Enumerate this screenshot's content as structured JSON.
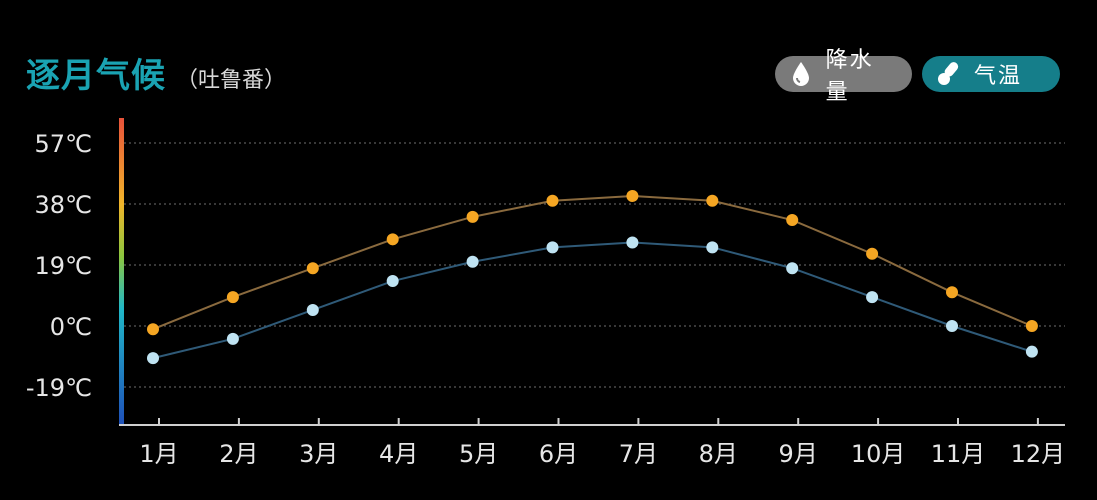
{
  "header": {
    "title": "逐月气候",
    "subtitle": "（吐鲁番）"
  },
  "toggles": [
    {
      "label": "降水量",
      "icon": "water-drop-icon",
      "active": false
    },
    {
      "label": "气温",
      "icon": "thermometer-icon",
      "active": true
    }
  ],
  "colors": {
    "accent": "#1aa3b3",
    "high_series": "#f5a623",
    "high_line": "#8a6a3e",
    "low_series": "#bfe3f2",
    "low_line": "#2f5a78",
    "gradient_top": "#e8523a",
    "gradient_mid": "#8cc63f",
    "gradient_cyan": "#20b8c8",
    "gradient_bottom": "#1f4fb8"
  },
  "chart_data": {
    "type": "line",
    "categories": [
      "1月",
      "2月",
      "3月",
      "4月",
      "5月",
      "6月",
      "7月",
      "8月",
      "9月",
      "10月",
      "11月",
      "12月"
    ],
    "y_ticks": [
      "57℃",
      "38℃",
      "19℃",
      "0℃",
      "-19℃"
    ],
    "y_tick_values": [
      57,
      38,
      19,
      0,
      -19
    ],
    "ylim": [
      -19,
      57
    ],
    "grid": true,
    "series": [
      {
        "values": [
          -1,
          9,
          18,
          27,
          34,
          39,
          40.5,
          39,
          33,
          22.5,
          10.5,
          0
        ]
      },
      {
        "values": [
          -10,
          -4,
          5,
          14,
          20,
          24.5,
          26,
          24.5,
          18,
          9,
          0,
          -8
        ]
      }
    ]
  }
}
